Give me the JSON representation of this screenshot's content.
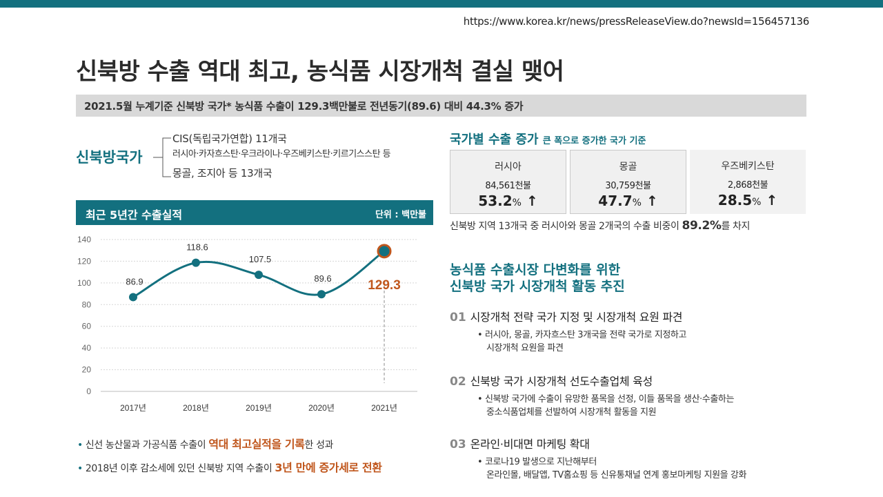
{
  "url": "https://www.korea.kr/news/pressReleaseView.do?newsId=156457136",
  "title": "신북방 수출 역대 최고, 농식품 시장개척 결실 맺어",
  "summary": "2021.5월 누계기준 신북방 국가* 농식품 수출이 129.3백만불로 전년동기(89.6) 대비 44.3% 증가",
  "nations": {
    "label": "신북방국가",
    "line1": "CIS(독립국가연합) 11개국",
    "line2": "러시아·카자흐스탄·우크라이나·우즈베키스탄·키르기스스탄 등",
    "line3": "몽골, 조지아 등 13개국"
  },
  "chart_header": {
    "title": "최근 5년간 수출실적",
    "unit": "단위 : 백만불"
  },
  "chart_data": {
    "type": "line",
    "title": "최근 5년간 수출실적",
    "ylabel": "단위 : 백만불",
    "categories": [
      "2017년",
      "2018년",
      "2019년",
      "2020년",
      "2021년"
    ],
    "values": [
      86.9,
      118.6,
      107.5,
      89.6,
      129.3
    ],
    "labels": [
      "86.9",
      "118.6",
      "107.5",
      "89.6",
      "129.3"
    ],
    "ylim": [
      0,
      140
    ],
    "yticks": [
      0,
      20,
      40,
      60,
      80,
      100,
      120,
      140
    ],
    "grid": true,
    "highlight_index": 4
  },
  "bullets": [
    {
      "pre": "신선 농산물과 가공식품 수출이 ",
      "hl": "역대 최고실적을 기록",
      "post": "한 성과"
    },
    {
      "pre": "2018년 이후 감소세에 있던 신북방 지역 수출이 ",
      "hl": "3년 만에 증가세로 전환",
      "post": ""
    }
  ],
  "section1": {
    "title": "국가별 수출 증가",
    "subtitle": "큰 폭으로 증가한 국가 기준",
    "countries": [
      {
        "name": "러시아",
        "value": "84,561천불",
        "pct": "53.2",
        "pct_unit": "%",
        "arrow": "↑"
      },
      {
        "name": "몽골",
        "value": "30,759천불",
        "pct": "47.7",
        "pct_unit": "%",
        "arrow": "↑"
      },
      {
        "name": "우즈베키스탄",
        "value": "2,868천불",
        "pct": "28.5",
        "pct_unit": "%",
        "arrow": "↑"
      }
    ],
    "share_pre": "신북방 지역 13개국 중 러시아와 몽골 2개국의 수출 비중이 ",
    "share_big": "89.2%",
    "share_post": "를 차지"
  },
  "section2": {
    "title1": "농식품 수출시장 다변화를 위한",
    "title2": "신북방 국가 시장개척 활동 추진",
    "items": [
      {
        "num": "01",
        "title": "시장개척 전략 국가 지정 및 시장개척 요원 파견",
        "d1": "• 러시아, 몽골, 카자흐스탄 3개국을 전략 국가로 지정하고",
        "d2": "시장개척 요원을 파견"
      },
      {
        "num": "02",
        "title": "신북방 국가 시장개척 선도수출업체 육성",
        "d1": "• 신북방 국가에 수출이 유망한 품목을 선정, 이들 품목을 생산·수출하는",
        "d2": "중소식품업체를 선발하여 시장개척 활동을 지원"
      },
      {
        "num": "03",
        "title": "온라인·비대면 마케팅 확대",
        "d1": "• 코로나19 발생으로 지난해부터",
        "d2": "온라인몰, 배달앱, TV홈쇼핑 등 신유통채널 연계 홍보마케팅 지원을 강화"
      }
    ]
  },
  "colors": {
    "teal": "#13707f",
    "orange": "#c0561c",
    "gray_bar": "#d9d9d9"
  }
}
